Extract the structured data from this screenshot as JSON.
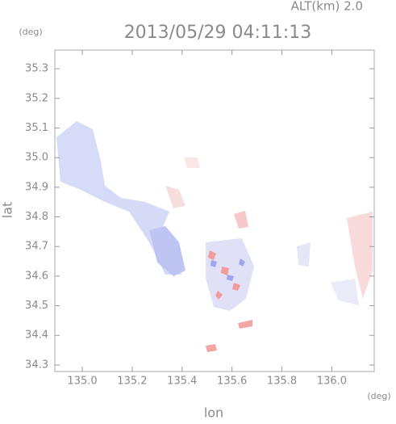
{
  "chart_data": {
    "type": "map",
    "title": "2013/05/29 04:11:13",
    "subtitle": "ALT(km) 2.0",
    "x_label": "lon",
    "y_label": "lat",
    "x_unit": "(deg)",
    "y_unit": "(deg)",
    "xlim": [
      134.89,
      136.17
    ],
    "ylim": [
      34.278,
      35.363
    ],
    "xticks": [
      {
        "value": 135,
        "label": "135.0"
      },
      135.2,
      135.4,
      135.6,
      135.8,
      {
        "value": 136,
        "label": "136.0"
      }
    ],
    "yticks": [
      34.3,
      34.4,
      34.5,
      34.6,
      34.7,
      34.8,
      34.9,
      {
        "value": 35,
        "label": "35.0"
      },
      35.1,
      35.2,
      35.3
    ]
  }
}
